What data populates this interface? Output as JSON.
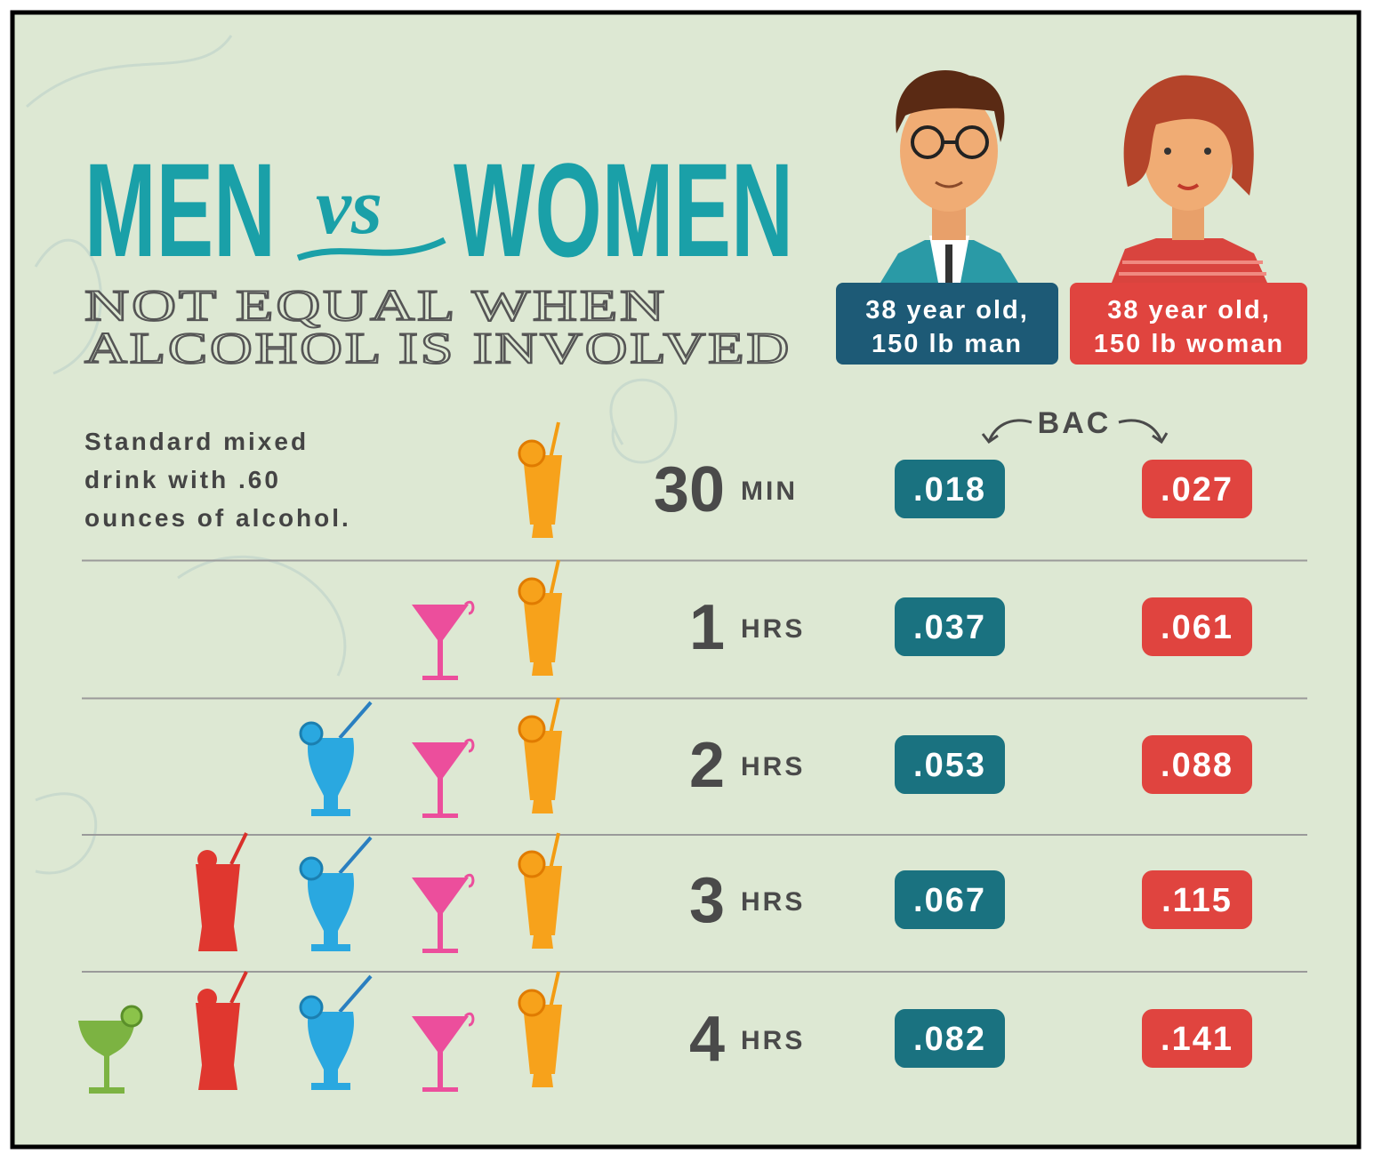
{
  "title": {
    "men": "MEN",
    "vs": "vs",
    "women": "WOMEN"
  },
  "subtitle": [
    "NOT EQUAL WHEN",
    "ALCOHOL IS INVOLVED"
  ],
  "people": [
    {
      "label": [
        "38 year old,",
        "150 lb man"
      ]
    },
    {
      "label": [
        "38 year old,",
        "150 lb woman"
      ]
    }
  ],
  "bac_label": "BAC",
  "note": [
    "Standard mixed",
    "drink with .60",
    "ounces of alcohol."
  ],
  "rows": [
    {
      "time": "30",
      "unit": "MIN",
      "man": ".018",
      "woman": ".027"
    },
    {
      "time": "1",
      "unit": "HRS",
      "man": ".037",
      "woman": ".061"
    },
    {
      "time": "2",
      "unit": "HRS",
      "man": ".053",
      "woman": ".088"
    },
    {
      "time": "3",
      "unit": "HRS",
      "man": ".067",
      "woman": ".115"
    },
    {
      "time": "4",
      "unit": "HRS",
      "man": ".082",
      "woman": ".141"
    }
  ]
}
